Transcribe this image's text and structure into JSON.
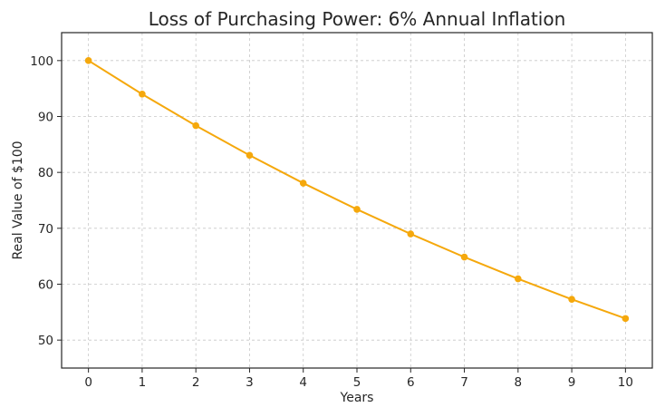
{
  "chart_data": {
    "type": "line",
    "title": "Loss of Purchasing Power: 6% Annual Inflation",
    "xlabel": "Years",
    "ylabel": "Real Value of $100",
    "x": [
      0,
      1,
      2,
      3,
      4,
      5,
      6,
      7,
      8,
      9,
      10
    ],
    "x_ticks": [
      "0",
      "1",
      "2",
      "3",
      "4",
      "5",
      "6",
      "7",
      "8",
      "9",
      "10"
    ],
    "y_ticks": [
      "50",
      "60",
      "70",
      "80",
      "90",
      "100"
    ],
    "xlim": [
      -0.5,
      10.5
    ],
    "ylim": [
      45,
      105
    ],
    "grid": true,
    "series": [
      {
        "color": "#f5a80c",
        "marker": "circle",
        "values": [
          100.0,
          94.0,
          88.36,
          83.06,
          78.07,
          73.39,
          68.99,
          64.85,
          60.96,
          57.3,
          53.86
        ]
      }
    ]
  }
}
